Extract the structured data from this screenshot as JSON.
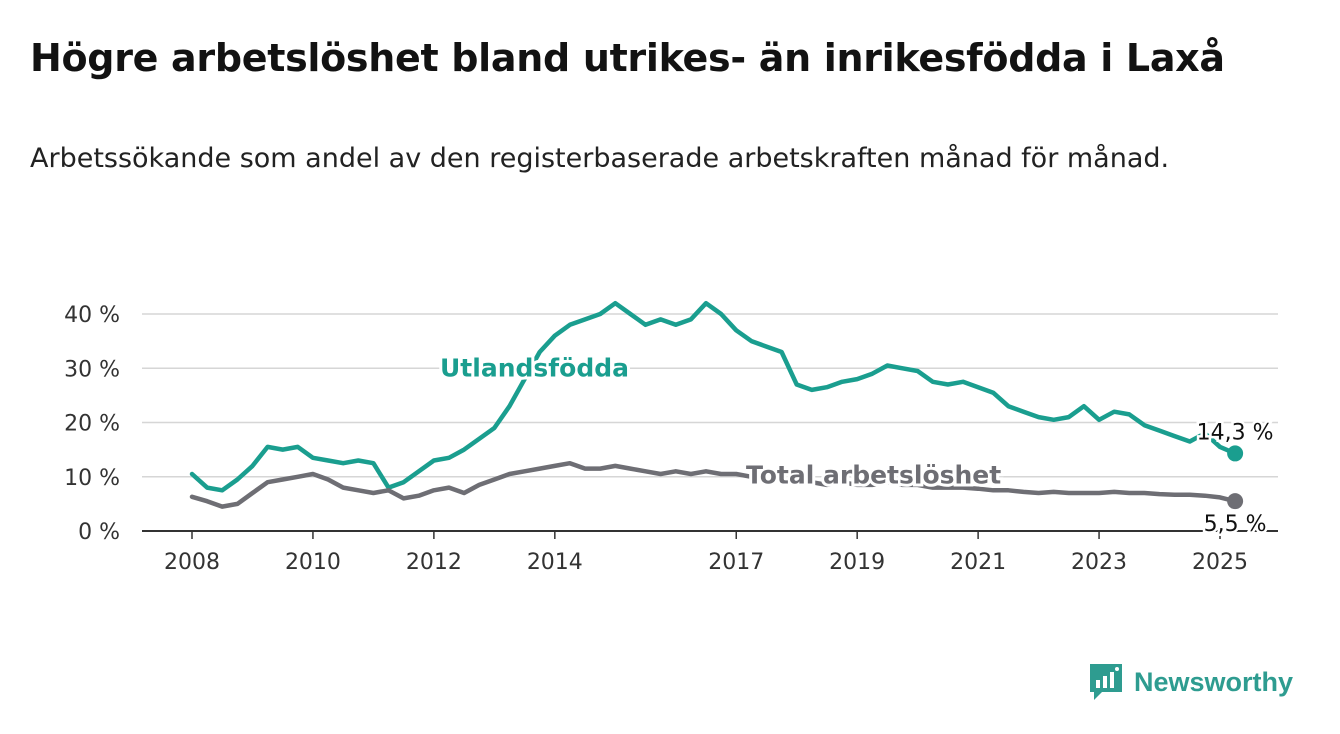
{
  "title": "Högre arbetslöshet bland utrikes- än inrikesfödda i Laxå",
  "subtitle": "Arbetssökande som andel av den registerbaserade arbetskraften månad för månad.",
  "brand": {
    "name": "Newsworthy",
    "color": "#2e9c90",
    "icon": "bar-chart-bubble-icon"
  },
  "chart_data": {
    "type": "line",
    "grid": true,
    "ylim": [
      0,
      40
    ],
    "y_ticks": [
      "0 %",
      "10 %",
      "20 %",
      "30 %",
      "40 %"
    ],
    "y_tick_values": [
      0,
      10,
      20,
      30,
      40
    ],
    "x_ticks": [
      "2008",
      "2010",
      "2012",
      "2014",
      "2017",
      "2019",
      "2021",
      "2023",
      "2025"
    ],
    "x_tick_values": [
      2008,
      2010,
      2012,
      2014,
      2017,
      2019,
      2021,
      2023,
      2025
    ],
    "xlim": [
      2007.8,
      2025.4
    ],
    "series": [
      {
        "name": "Utlandsfödda",
        "color": "#1a9e8f",
        "end_label": "14,3 %",
        "x": [
          2008.0,
          2008.25,
          2008.5,
          2008.75,
          2009.0,
          2009.25,
          2009.5,
          2009.75,
          2010.0,
          2010.25,
          2010.5,
          2010.75,
          2011.0,
          2011.25,
          2011.5,
          2011.75,
          2012.0,
          2012.25,
          2012.5,
          2012.75,
          2013.0,
          2013.25,
          2013.5,
          2013.75,
          2014.0,
          2014.25,
          2014.5,
          2014.75,
          2015.0,
          2015.25,
          2015.5,
          2015.75,
          2016.0,
          2016.25,
          2016.5,
          2016.75,
          2017.0,
          2017.25,
          2017.5,
          2017.75,
          2018.0,
          2018.25,
          2018.5,
          2018.75,
          2019.0,
          2019.25,
          2019.5,
          2019.75,
          2020.0,
          2020.25,
          2020.5,
          2020.75,
          2021.0,
          2021.25,
          2021.5,
          2021.75,
          2022.0,
          2022.25,
          2022.5,
          2022.75,
          2023.0,
          2023.25,
          2023.5,
          2023.75,
          2024.0,
          2024.25,
          2024.5,
          2024.75,
          2025.0,
          2025.25
        ],
        "y": [
          10.5,
          8.0,
          7.5,
          9.5,
          12.0,
          15.5,
          15.0,
          15.5,
          13.5,
          13.0,
          12.5,
          13.0,
          12.5,
          8.0,
          9.0,
          11.0,
          13.0,
          13.5,
          15.0,
          17.0,
          19.0,
          23.0,
          28.0,
          33.0,
          36.0,
          38.0,
          39.0,
          40.0,
          42.0,
          40.0,
          38.0,
          39.0,
          38.0,
          39.0,
          42.0,
          40.0,
          37.0,
          35.0,
          34.0,
          33.0,
          27.0,
          26.0,
          26.5,
          27.5,
          28.0,
          29.0,
          30.5,
          30.0,
          29.5,
          27.5,
          27.0,
          27.5,
          26.5,
          25.5,
          23.0,
          22.0,
          21.0,
          20.5,
          21.0,
          23.0,
          20.5,
          22.0,
          21.5,
          19.5,
          18.5,
          17.5,
          16.5,
          18.0,
          15.5,
          14.3
        ]
      },
      {
        "name": "Total arbetslöshet",
        "color": "#6e6e74",
        "end_label": "5,5 %",
        "x": [
          2008.0,
          2008.25,
          2008.5,
          2008.75,
          2009.0,
          2009.25,
          2009.5,
          2009.75,
          2010.0,
          2010.25,
          2010.5,
          2010.75,
          2011.0,
          2011.25,
          2011.5,
          2011.75,
          2012.0,
          2012.25,
          2012.5,
          2012.75,
          2013.0,
          2013.25,
          2013.5,
          2013.75,
          2014.0,
          2014.25,
          2014.5,
          2014.75,
          2015.0,
          2015.25,
          2015.5,
          2015.75,
          2016.0,
          2016.25,
          2016.5,
          2016.75,
          2017.0,
          2017.25,
          2017.5,
          2017.75,
          2018.0,
          2018.25,
          2018.5,
          2018.75,
          2019.0,
          2019.25,
          2019.5,
          2019.75,
          2020.0,
          2020.25,
          2020.5,
          2020.75,
          2021.0,
          2021.25,
          2021.5,
          2021.75,
          2022.0,
          2022.25,
          2022.5,
          2022.75,
          2023.0,
          2023.25,
          2023.5,
          2023.75,
          2024.0,
          2024.25,
          2024.5,
          2024.75,
          2025.0,
          2025.25
        ],
        "y": [
          6.3,
          5.5,
          4.5,
          5.0,
          7.0,
          9.0,
          9.5,
          10.0,
          10.5,
          9.5,
          8.0,
          7.5,
          7.0,
          7.5,
          6.0,
          6.5,
          7.5,
          8.0,
          7.0,
          8.5,
          9.5,
          10.5,
          11.0,
          11.5,
          12.0,
          12.5,
          11.5,
          11.5,
          12.0,
          11.5,
          11.0,
          10.5,
          11.0,
          10.5,
          11.0,
          10.5,
          10.5,
          10.0,
          9.5,
          9.5,
          9.0,
          9.0,
          8.5,
          9.0,
          8.5,
          8.5,
          9.0,
          8.5,
          8.5,
          8.0,
          8.0,
          8.0,
          7.8,
          7.5,
          7.5,
          7.2,
          7.0,
          7.2,
          7.0,
          7.0,
          7.0,
          7.2,
          7.0,
          7.0,
          6.8,
          6.7,
          6.7,
          6.5,
          6.2,
          5.5
        ]
      }
    ]
  }
}
